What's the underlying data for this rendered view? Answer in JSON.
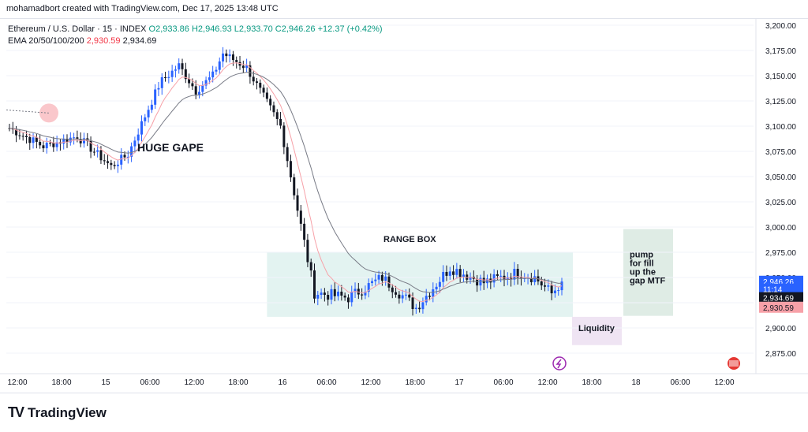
{
  "header": {
    "caption": "mohamadbort created with TradingView.com, Dec 17, 2025 13:48 UTC"
  },
  "legend": {
    "symbol": "Ethereum / U.S. Dollar · 15 · INDEX",
    "o": "O2,933.86",
    "h": "H2,946.93",
    "l": "L2,933.70",
    "c": "C2,946.26",
    "change": "+12.37 (+0.42%)",
    "ema_label": "EMA 20/50/100/200",
    "ema_fast": "2,930.59",
    "ema_slow": "2,934.69"
  },
  "colors": {
    "up": "#2962ff",
    "down": "#131722",
    "ema_fast": "#f7a1a8",
    "ema_slow": "#787b86",
    "range_box": "#e3f3f1",
    "pump_box": "#dfece5",
    "liq_box": "#efe4f3"
  },
  "price_axis": {
    "ticks": [
      "3,200.00",
      "3,175.00",
      "3,150.00",
      "3,125.00",
      "3,100.00",
      "3,075.00",
      "3,050.00",
      "3,025.00",
      "3,000.00",
      "2,975.00",
      "2,950.00",
      "2,925.00",
      "2,900.00",
      "2,875.00"
    ],
    "tags": {
      "last": "2,946.26",
      "countdown": "11:14",
      "ema_slow": "2,934.69",
      "ema_fast": "2,930.59"
    }
  },
  "time_axis": {
    "ticks": [
      "12:00",
      "18:00",
      "15",
      "06:00",
      "12:00",
      "18:00",
      "16",
      "06:00",
      "12:00",
      "18:00",
      "17",
      "06:00",
      "12:00",
      "18:00",
      "18",
      "06:00",
      "12:00"
    ]
  },
  "annotations": {
    "huge_gape": "HUGE GAPE",
    "range_box": "RANGE BOX",
    "liquidity": "Liquidity",
    "pump_lines": [
      "pump",
      "for fill",
      "up the",
      "gap MTF"
    ]
  },
  "icons": {
    "bolt": "lightning-icon",
    "flag": "us-flag-icon",
    "logo": "tradingview-logo-icon"
  },
  "footer": {
    "brand": "TradingView"
  },
  "chart_data": {
    "type": "line",
    "title": "Ethereum / U.S. Dollar · 15 · INDEX",
    "xlabel": "",
    "ylabel": "",
    "ylim": [
      2870,
      3210
    ],
    "anchors_time_index": [
      0,
      10,
      20,
      30,
      35,
      40,
      44,
      45,
      50,
      55,
      60,
      63,
      70,
      80,
      90,
      100,
      110,
      120,
      130,
      140,
      150,
      155,
      160,
      163
    ],
    "anchors_close": [
      3098,
      3080,
      3090,
      3060,
      3072,
      3110,
      3140,
      3145,
      3160,
      3135,
      3150,
      3172,
      3158,
      3100,
      2935,
      2930,
      2950,
      2920,
      2960,
      2945,
      2955,
      2950,
      2934,
      2946
    ],
    "series": [
      {
        "name": "EMA 20/50/100/200",
        "last": 2930.59
      },
      {
        "name": "EMA 20/50/100/200",
        "last": 2934.69
      }
    ],
    "range_box": {
      "top": 2975,
      "bottom": 2911
    },
    "events": [
      {
        "label": "HUGE GAPE",
        "price": 3078
      },
      {
        "label": "RANGE BOX",
        "price": 2985
      },
      {
        "label": "Liquidity",
        "price": 2895
      }
    ]
  }
}
